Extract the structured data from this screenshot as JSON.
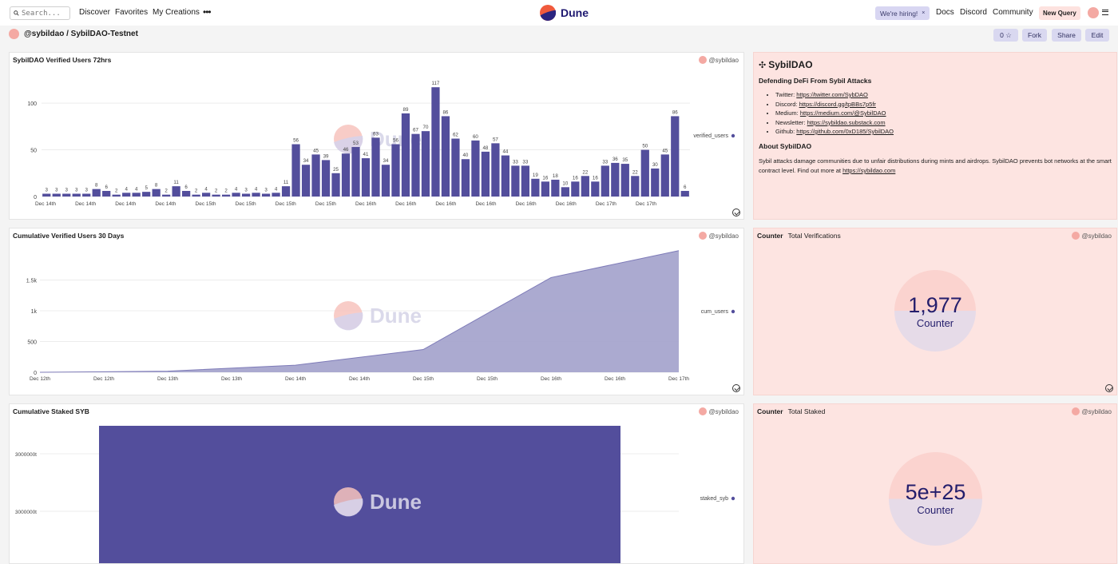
{
  "nav": {
    "search_placeholder": "Search...",
    "links": [
      "Discover",
      "Favorites",
      "My Creations"
    ],
    "more": "•••",
    "logo_text": "Dune",
    "hiring_label": "We're hiring!",
    "hiring_close": "×",
    "right_links": [
      "Docs",
      "Discord",
      "Community"
    ],
    "new_query": "New Query"
  },
  "header": {
    "title": "@sybildao / SybilDAO-Testnet",
    "favorites_count": "0 ☆",
    "fork": "Fork",
    "share": "Share",
    "edit": "Edit"
  },
  "owner": "@sybildao",
  "watermark": "Dune",
  "panels": {
    "verified": {
      "title": "SybilDAO Verified Users 72hrs",
      "legend": "verified_users"
    },
    "cumulative": {
      "title": "Cumulative Verified Users 30 Days",
      "legend": "cum_users"
    },
    "staked": {
      "title": "Cumulative Staked SYB",
      "legend": "staked_syb"
    },
    "about": {
      "heading": "SybilDAO",
      "subheading": "Defending DeFi From Sybil Attacks",
      "links": [
        {
          "label": "Twitter:",
          "url": "https://twitter.com/SybDAO"
        },
        {
          "label": "Discord:",
          "url": "https://discord.gg/tpBBs7p5fr"
        },
        {
          "label": "Medium:",
          "url": "https://medium.com/@SybilDAO"
        },
        {
          "label": "Newsletter:",
          "url": "https://sybildao.substack.com"
        },
        {
          "label": "Github:",
          "url": "https://github.com/0xD185/SybilDAO"
        }
      ],
      "about_heading": "About SybilDAO",
      "about_text": "Sybil attacks damage communities due to unfair distributions during mints and airdrops. SybilDAO prevents bot networks at the smart contract level. Find out more at",
      "about_link": "https://sybildao.com"
    },
    "counter1": {
      "type_label": "Counter",
      "title": "Total Verifications",
      "value": "1,977",
      "label": "Counter"
    },
    "counter2": {
      "type_label": "Counter",
      "title": "Total Staked",
      "value": "5e+25",
      "label": "Counter"
    }
  },
  "colors": {
    "bar": "#534e9c",
    "area": "#a7a5ce",
    "accent": "#f4a9a3",
    "counter_text": "#241e6c"
  },
  "chart_data": [
    {
      "type": "bar",
      "title": "SybilDAO Verified Users 72hrs",
      "series": [
        {
          "name": "verified_users",
          "values": [
            3,
            3,
            3,
            3,
            3,
            8,
            6,
            2,
            4,
            4,
            5,
            8,
            2,
            11,
            6,
            2,
            4,
            2,
            2,
            4,
            3,
            4,
            3,
            4,
            11,
            56,
            34,
            45,
            39,
            25,
            46,
            53,
            41,
            63,
            34,
            56,
            89,
            67,
            70,
            117,
            86,
            62,
            40,
            60,
            48,
            57,
            44,
            33,
            33,
            19,
            16,
            18,
            10,
            16,
            22,
            16,
            33,
            36,
            35,
            22,
            50,
            30,
            45,
            86,
            6
          ]
        }
      ],
      "ylim": [
        0,
        130
      ],
      "yticks": [
        0,
        50,
        100
      ],
      "xtick_labels": [
        "Dec 14th",
        "Dec 14th",
        "Dec 14th",
        "Dec 14th",
        "Dec 15th",
        "Dec 15th",
        "Dec 15th",
        "Dec 15th",
        "Dec 16th",
        "Dec 16th",
        "Dec 16th",
        "Dec 16th",
        "Dec 16th",
        "Dec 16th",
        "Dec 17th",
        "Dec 17th"
      ],
      "legend": "right"
    },
    {
      "type": "area",
      "title": "Cumulative Verified Users 30 Days",
      "x": [
        "Dec 12th",
        "Dec 13th",
        "Dec 14th",
        "Dec 15th",
        "Dec 16th",
        "Dec 17th"
      ],
      "series": [
        {
          "name": "cum_users",
          "values": [
            0,
            18,
            115,
            370,
            1540,
            1977
          ]
        }
      ],
      "ylim": [
        0,
        2000
      ],
      "yticks": [
        0,
        500,
        1000,
        1500
      ],
      "ytick_labels": [
        "0",
        "500",
        "1k",
        "1.5k"
      ],
      "xtick_labels": [
        "Dec 12th",
        "Dec 12th",
        "Dec 13th",
        "Dec 13th",
        "Dec 14th",
        "Dec 14th",
        "Dec 15th",
        "Dec 15th",
        "Dec 16th",
        "Dec 16th",
        "Dec 17th"
      ],
      "legend": "right"
    },
    {
      "type": "bar",
      "title": "Cumulative Staked SYB",
      "series": [
        {
          "name": "staked_syb",
          "values": [
            1
          ]
        }
      ],
      "ytick_labels": [
        "3000000t",
        "3000000t"
      ],
      "legend": "right"
    }
  ]
}
